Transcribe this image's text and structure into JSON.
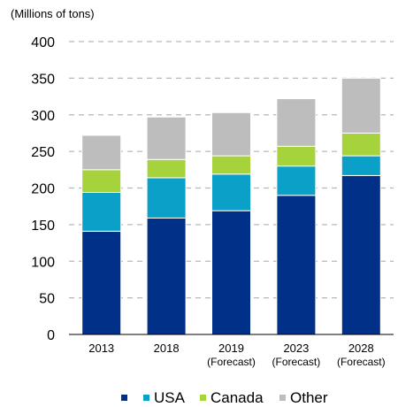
{
  "chart_data": {
    "type": "bar",
    "stacked": true,
    "unit_label": "(Millions of tons)",
    "categories": [
      {
        "line1": "2013",
        "line2": ""
      },
      {
        "line1": "2018",
        "line2": ""
      },
      {
        "line1": "2019",
        "line2": "(Forecast)"
      },
      {
        "line1": "2023",
        "line2": "(Forecast)"
      },
      {
        "line1": "2028",
        "line2": "(Forecast)"
      }
    ],
    "ylim": [
      0,
      400
    ],
    "yticks": [
      "0",
      "50",
      "100",
      "150",
      "200",
      "250",
      "300",
      "350",
      "400"
    ],
    "grid": true,
    "legend_position": "bottom",
    "series": [
      {
        "name": "",
        "color": "#003087",
        "values": [
          141,
          159,
          169,
          190,
          217
        ]
      },
      {
        "name": "USA",
        "color": "#0aa0c8",
        "values": [
          53,
          55,
          50,
          40,
          27
        ]
      },
      {
        "name": "Canada",
        "color": "#a6d33b",
        "values": [
          31,
          25,
          25,
          27,
          31
        ]
      },
      {
        "name": "Other",
        "color": "#bdbdbd",
        "values": [
          47,
          58,
          59,
          65,
          75
        ]
      }
    ]
  }
}
